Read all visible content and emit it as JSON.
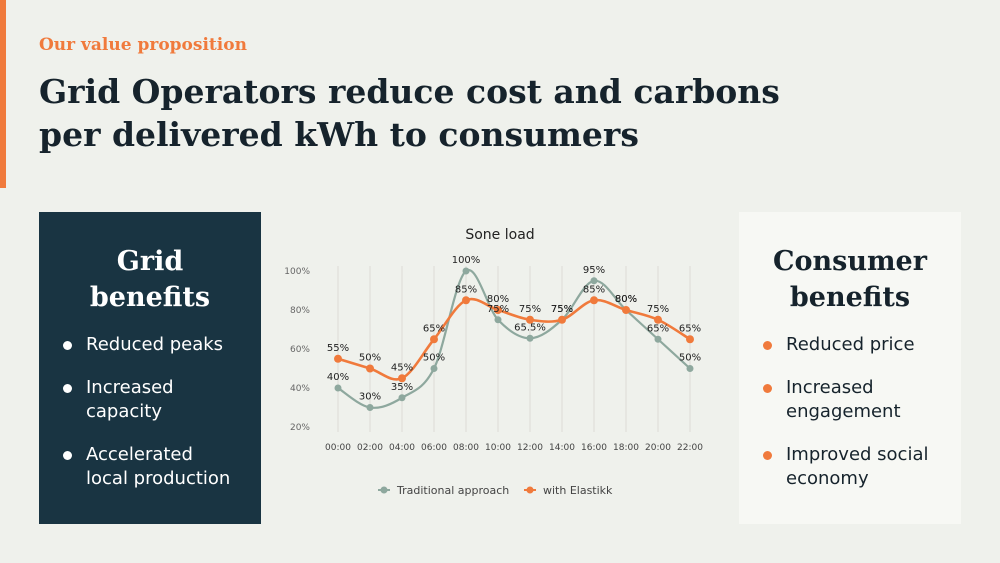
{
  "eyebrow": "Our value proposition",
  "title_line1": "Grid Operators reduce cost and carbons",
  "title_line2": "per delivered kWh to consumers",
  "grid_panel": {
    "heading_line1": "Grid",
    "heading_line2": "benefits",
    "items": [
      {
        "line1": "Reduced peaks",
        "line2": ""
      },
      {
        "line1": "Increased",
        "line2": "capacity"
      },
      {
        "line1": "Accelerated",
        "line2": "local production"
      }
    ]
  },
  "consumer_panel": {
    "heading_line1": "Consumer",
    "heading_line2": "benefits",
    "items": [
      {
        "line1": "Reduced price",
        "line2": ""
      },
      {
        "line1": "Increased",
        "line2": "engagement"
      },
      {
        "line1": "Improved social",
        "line2": "economy"
      }
    ]
  },
  "colors": {
    "accent": "#f07a3c",
    "traditional": "#8ea89e",
    "elastikk": "#f07a3c",
    "dark_panel": "#193442"
  },
  "chart_data": {
    "type": "line",
    "title": "Sone load",
    "categories": [
      "00:00",
      "02:00",
      "04:00",
      "06:00",
      "08:00",
      "10:00",
      "12:00",
      "14:00",
      "16:00",
      "18:00",
      "20:00",
      "22:00"
    ],
    "series": [
      {
        "name": "Traditional approach",
        "color": "#8ea89e",
        "values": [
          40,
          30,
          35,
          50,
          100,
          75,
          65.5,
          75,
          95,
          80,
          65,
          50
        ],
        "labels": [
          "40%",
          "30%",
          "35%",
          "50%",
          "100%",
          "75%",
          "65.5%",
          "75%",
          "95%",
          "80%",
          "65%",
          "50%"
        ]
      },
      {
        "name": "with Elastikk",
        "color": "#f07a3c",
        "values": [
          55,
          50,
          45,
          65,
          85,
          80,
          75,
          75,
          85,
          80,
          75,
          65
        ],
        "labels": [
          "55%",
          "50%",
          "45%",
          "65%",
          "85%",
          "80%",
          "75%",
          "75%",
          "85%",
          "80%",
          "75%",
          "65%"
        ]
      }
    ],
    "y_ticks": [
      "100%",
      "80%",
      "60%",
      "40%",
      "20%"
    ],
    "ylim": [
      20,
      100
    ],
    "grid": "vertical",
    "legend": "bottom"
  }
}
